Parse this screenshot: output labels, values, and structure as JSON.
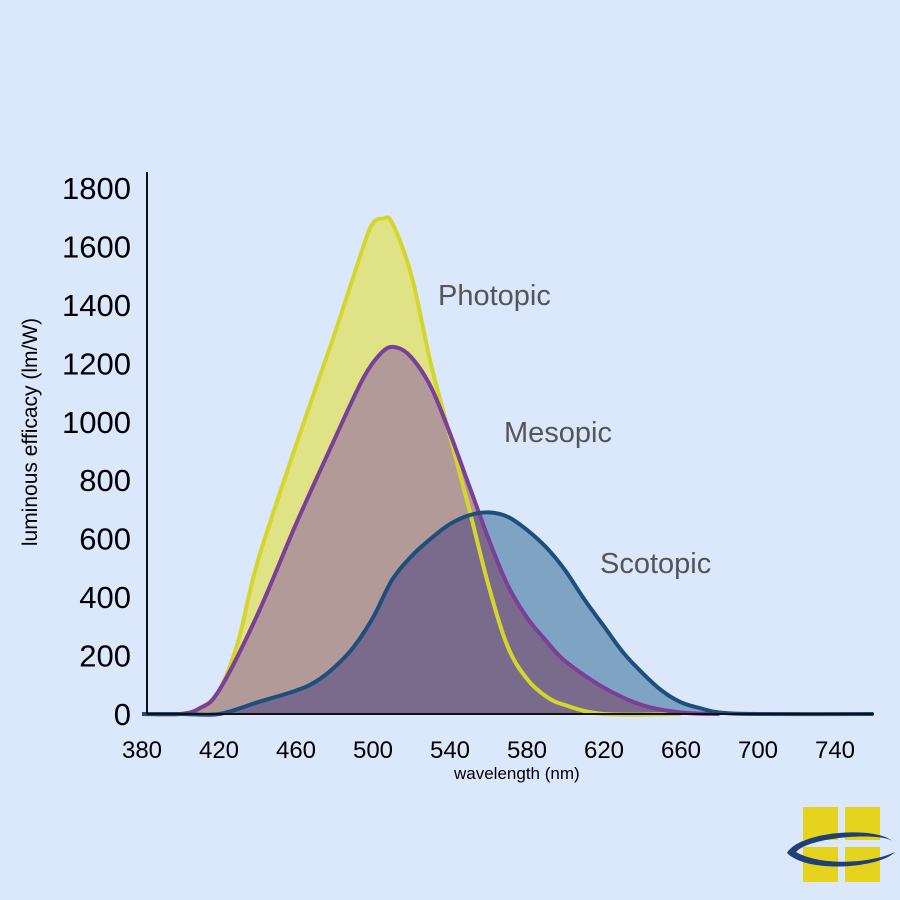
{
  "chart_data": {
    "type": "area",
    "title": "",
    "xlabel": "wavelength (nm)",
    "ylabel": "luminous efficacy (lm/W)",
    "xlim": [
      380,
      760
    ],
    "ylim": [
      0,
      1800
    ],
    "xticks": [
      380,
      420,
      460,
      500,
      540,
      580,
      620,
      660,
      700,
      740
    ],
    "yticks": [
      0,
      200,
      400,
      600,
      800,
      1000,
      1200,
      1400,
      1600,
      1800
    ],
    "grid": false,
    "legend": "none",
    "series": [
      {
        "name": "Photopic",
        "fill": "#dfe285",
        "stroke": "#d4d62e",
        "points": [
          [
            380,
            0
          ],
          [
            400,
            0
          ],
          [
            410,
            20
          ],
          [
            420,
            80
          ],
          [
            430,
            250
          ],
          [
            440,
            520
          ],
          [
            460,
            920
          ],
          [
            480,
            1300
          ],
          [
            495,
            1600
          ],
          [
            500,
            1680
          ],
          [
            505,
            1695
          ],
          [
            510,
            1680
          ],
          [
            520,
            1500
          ],
          [
            530,
            1200
          ],
          [
            540,
            950
          ],
          [
            550,
            700
          ],
          [
            560,
            440
          ],
          [
            570,
            230
          ],
          [
            580,
            120
          ],
          [
            590,
            60
          ],
          [
            600,
            30
          ],
          [
            620,
            0
          ],
          [
            660,
            0
          ]
        ]
      },
      {
        "name": "Mesopic",
        "fill": "#b29a98",
        "stroke": "#7a3f96",
        "points": [
          [
            380,
            0
          ],
          [
            400,
            0
          ],
          [
            410,
            20
          ],
          [
            420,
            80
          ],
          [
            440,
            340
          ],
          [
            460,
            650
          ],
          [
            480,
            940
          ],
          [
            495,
            1150
          ],
          [
            505,
            1240
          ],
          [
            512,
            1255
          ],
          [
            520,
            1220
          ],
          [
            530,
            1120
          ],
          [
            540,
            960
          ],
          [
            550,
            780
          ],
          [
            560,
            600
          ],
          [
            570,
            440
          ],
          [
            580,
            330
          ],
          [
            590,
            250
          ],
          [
            600,
            180
          ],
          [
            620,
            90
          ],
          [
            640,
            30
          ],
          [
            660,
            5
          ],
          [
            680,
            0
          ]
        ]
      },
      {
        "name": "Scotopic",
        "fill": "#7fa3c3",
        "stroke": "#1e4f7c",
        "points": [
          [
            380,
            0
          ],
          [
            400,
            0
          ],
          [
            420,
            0
          ],
          [
            440,
            40
          ],
          [
            460,
            80
          ],
          [
            470,
            110
          ],
          [
            480,
            160
          ],
          [
            490,
            230
          ],
          [
            500,
            330
          ],
          [
            510,
            460
          ],
          [
            520,
            540
          ],
          [
            530,
            600
          ],
          [
            540,
            650
          ],
          [
            550,
            680
          ],
          [
            560,
            690
          ],
          [
            570,
            675
          ],
          [
            580,
            630
          ],
          [
            590,
            570
          ],
          [
            600,
            490
          ],
          [
            610,
            390
          ],
          [
            620,
            300
          ],
          [
            630,
            210
          ],
          [
            640,
            140
          ],
          [
            650,
            80
          ],
          [
            660,
            40
          ],
          [
            670,
            20
          ],
          [
            680,
            5
          ],
          [
            700,
            0
          ],
          [
            760,
            0
          ]
        ]
      }
    ]
  },
  "labels": {
    "photopic": "Photopic",
    "mesopic": "Mesopic",
    "scotopic": "Scotopic"
  },
  "logo": {
    "icon": "window-swoosh-logo",
    "colors": {
      "panel": "#e6d31d",
      "swoosh": "#1f3f76"
    }
  }
}
